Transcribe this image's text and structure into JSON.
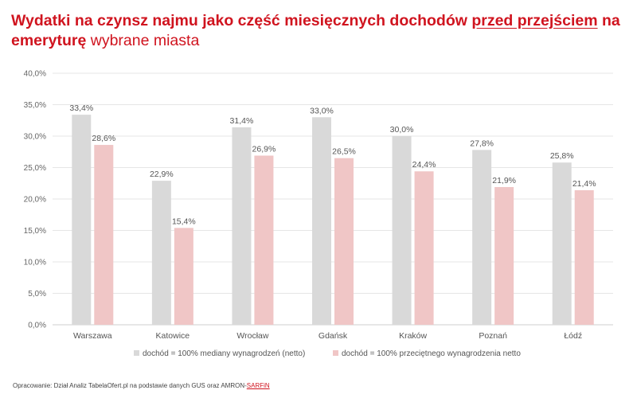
{
  "header": {
    "title_part1": "Wydatki na czynsz najmu jako część miesięcznych dochodów ",
    "title_part2": "przed przejściem",
    "title_part3": " na emeryturę",
    "title_part4": " wybrane miasta"
  },
  "source": {
    "prefix": "Opracowanie: Dział Analiz TabelaOfert.pl na podstawie danych GUS oraz AMRON-",
    "brand": "SARFiN"
  },
  "colors": {
    "series1": "#d9d9d9",
    "series2": "#f0c6c6",
    "grid": "#e6e6e6",
    "accent": "#d0141f"
  },
  "chart_data": {
    "type": "bar",
    "categories": [
      "Warszawa",
      "Katowice",
      "Wrocław",
      "Gdańsk",
      "Kraków",
      "Poznań",
      "Łódź"
    ],
    "series": [
      {
        "name": "dochód = 100% mediany wynagrodzeń (netto)",
        "values": [
          33.4,
          22.9,
          31.4,
          33.0,
          30.0,
          27.8,
          25.8
        ],
        "labels": [
          "33,4%",
          "22,9%",
          "31,4%",
          "33,0%",
          "30,0%",
          "27,8%",
          "25,8%"
        ]
      },
      {
        "name": "dochód = 100% przeciętnego wynagrodzenia netto",
        "values": [
          28.6,
          15.4,
          26.9,
          26.5,
          24.4,
          21.9,
          21.4
        ],
        "labels": [
          "28,6%",
          "15,4%",
          "26,9%",
          "26,5%",
          "24,4%",
          "21,9%",
          "21,4%"
        ]
      }
    ],
    "ylim": [
      0,
      40
    ],
    "yticks": [
      0,
      5,
      10,
      15,
      20,
      25,
      30,
      35,
      40
    ],
    "ytick_labels": [
      "0,0%",
      "5,0%",
      "10,0%",
      "15,0%",
      "20,0%",
      "25,0%",
      "30,0%",
      "35,0%",
      "40,0%"
    ],
    "grid": true,
    "legend_position": "bottom"
  }
}
